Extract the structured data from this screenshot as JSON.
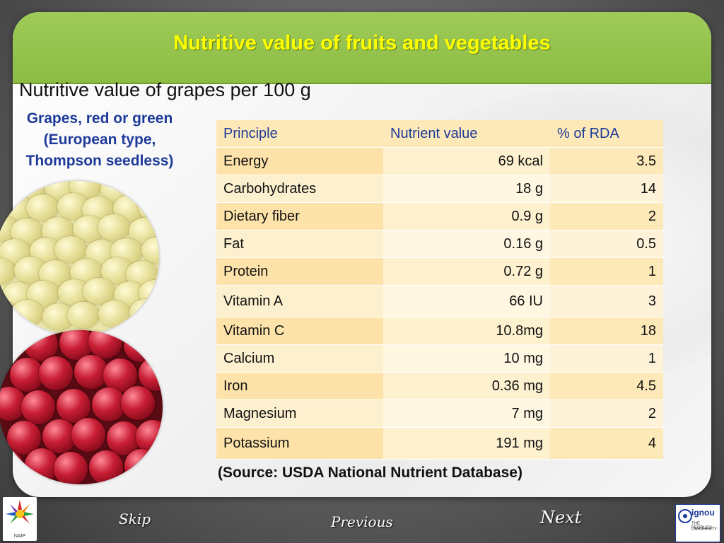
{
  "slide": {
    "title": "Nutritive value of fruits and vegetables",
    "subtitle": "Nutritive value of grapes per 100 g",
    "caption_lines": [
      "Grapes, red or green",
      "(European type,",
      "Thompson seedless)"
    ],
    "source": "(Source: USDA National Nutrient Database)"
  },
  "table": {
    "headers": [
      "Principle",
      "Nutrient value",
      "% of RDA"
    ],
    "rows": [
      {
        "principle": "Energy",
        "value": "69 kcal",
        "rda": "3.5"
      },
      {
        "principle": "Carbohydrates",
        "value": "18 g",
        "rda": "14"
      },
      {
        "principle": "Dietary fiber",
        "value": "0.9 g",
        "rda": "2"
      },
      {
        "principle": "Fat",
        "value": "0.16 g",
        "rda": "0.5"
      },
      {
        "principle": "Protein",
        "value": "0.72 g",
        "rda": "1"
      },
      {
        "principle": "Vitamin A",
        "value": "66 IU",
        "rda": "3"
      },
      {
        "principle": "Vitamin C",
        "value": "10.8mg",
        "rda": "18"
      },
      {
        "principle": "Calcium",
        "value": "10 mg",
        "rda": "1"
      },
      {
        "principle": "Iron",
        "value": "0.36 mg",
        "rda": "4.5"
      },
      {
        "principle": "Magnesium",
        "value": "7 mg",
        "rda": "2"
      },
      {
        "principle": "Potassium",
        "value": "191 mg",
        "rda": "4"
      }
    ]
  },
  "nav": {
    "skip": "Skip",
    "previous": "Previous",
    "next": "Next"
  },
  "logos": {
    "left_text": "NAIP",
    "right_text_1": "ignou",
    "right_text_2": "THE PEOPLE'S",
    "right_text_3": "UNIVERSITY"
  },
  "colors": {
    "header_green": "#8cbd43",
    "title_yellow": "#ffff00",
    "caption_blue": "#1e3a9a",
    "table_header_text": "#1e3a9a"
  }
}
